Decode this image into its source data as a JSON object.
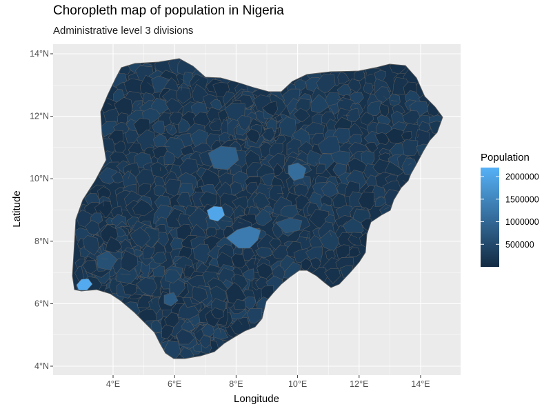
{
  "title": "Choropleth map of population in Nigeria",
  "subtitle": "Administrative level 3 divisions",
  "x_axis": {
    "title": "Longitude",
    "ticks": [
      {
        "value": 4,
        "label": "4°E"
      },
      {
        "value": 6,
        "label": "6°E"
      },
      {
        "value": 8,
        "label": "8°E"
      },
      {
        "value": 10,
        "label": "10°E"
      },
      {
        "value": 12,
        "label": "12°E"
      },
      {
        "value": 14,
        "label": "14°E"
      }
    ]
  },
  "y_axis": {
    "title": "Latitude",
    "ticks": [
      {
        "value": 4,
        "label": "4°N"
      },
      {
        "value": 6,
        "label": "6°N"
      },
      {
        "value": 8,
        "label": "8°N"
      },
      {
        "value": 10,
        "label": "10°N"
      },
      {
        "value": 12,
        "label": "12°N"
      },
      {
        "value": 14,
        "label": "14°N"
      }
    ]
  },
  "legend": {
    "title": "Population",
    "low_color": "#132B43",
    "high_color": "#56B1F7",
    "min": 0,
    "max": 2200000,
    "breaks": [
      {
        "value": 2000000,
        "label": "2000000"
      },
      {
        "value": 1500000,
        "label": "1500000"
      },
      {
        "value": 1000000,
        "label": "1000000"
      },
      {
        "value": 500000,
        "label": "500000"
      }
    ]
  },
  "colors": {
    "panel_background": "#EBEBEB",
    "grid": "#FFFFFF",
    "region_border": "#5A5A5A"
  }
}
